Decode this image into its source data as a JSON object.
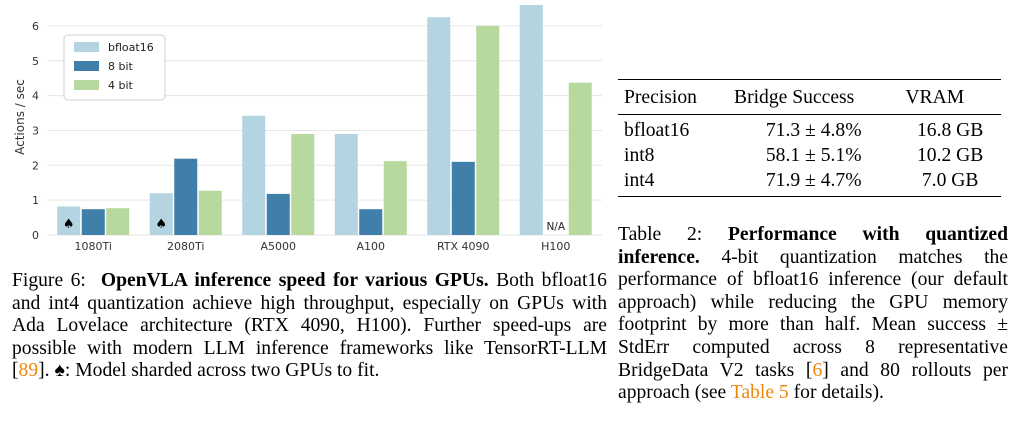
{
  "chart_data": {
    "type": "bar",
    "ylabel": "Actions / sec",
    "ylim": [
      0,
      6.6
    ],
    "yticks": [
      "0",
      "1",
      "2",
      "3",
      "4",
      "5",
      "6"
    ],
    "categories": [
      "1080Ti",
      "2080Ti",
      "A5000",
      "A100",
      "RTX 4090",
      "H100"
    ],
    "series": [
      {
        "name": "bfloat16",
        "color": "#b4d4e1",
        "values": [
          0.82,
          1.2,
          3.42,
          2.9,
          6.25,
          6.6
        ]
      },
      {
        "name": "8 bit",
        "color": "#3f7fa9",
        "values": [
          0.74,
          2.19,
          1.18,
          0.74,
          2.1,
          null
        ]
      },
      {
        "name": "4 bit",
        "color": "#b7d99e",
        "values": [
          0.77,
          1.27,
          2.9,
          2.12,
          6.0,
          4.37
        ]
      }
    ],
    "sharded_marker": "♠",
    "na_label": "N/A",
    "legend_position": "upper-left",
    "grid": "horizontal"
  },
  "figure_caption": {
    "label": "Figure 6:",
    "bold": "OpenVLA inference speed for various GPUs.",
    "text_before_ref": "Both bfloat16 and int4 quantization achieve high throughput, especially on GPUs with Ada Lovelace architecture (RTX 4090, H100). Further speed-ups are possible with modern LLM inference frameworks like TensorRT-LLM [",
    "ref": "89",
    "text_after_ref": "].",
    "spade": "♠",
    "spade_text": ": Model sharded across two GPUs to fit."
  },
  "table": {
    "headers": [
      "Precision",
      "Bridge Success",
      "VRAM"
    ],
    "rows": [
      [
        "bfloat16",
        "71.3 ± 4.8%",
        "16.8 GB"
      ],
      [
        "int8",
        "58.1 ± 5.1%",
        "10.2 GB"
      ],
      [
        "int4",
        "71.9 ± 4.7%",
        "7.0 GB"
      ]
    ]
  },
  "table_caption": {
    "label": "Table 2:",
    "bold": "Performance with quantized inference.",
    "text1": "4-bit quantization matches the performance of bfloat16 inference (our default approach) while reducing the GPU memory footprint by more than half. Mean success ± StdErr computed across 8 representative BridgeData V2 tasks [",
    "ref1": "6",
    "text2": "] and 80 rollouts per approach (see",
    "ref2": "Table 5",
    "text3": "for details)."
  }
}
